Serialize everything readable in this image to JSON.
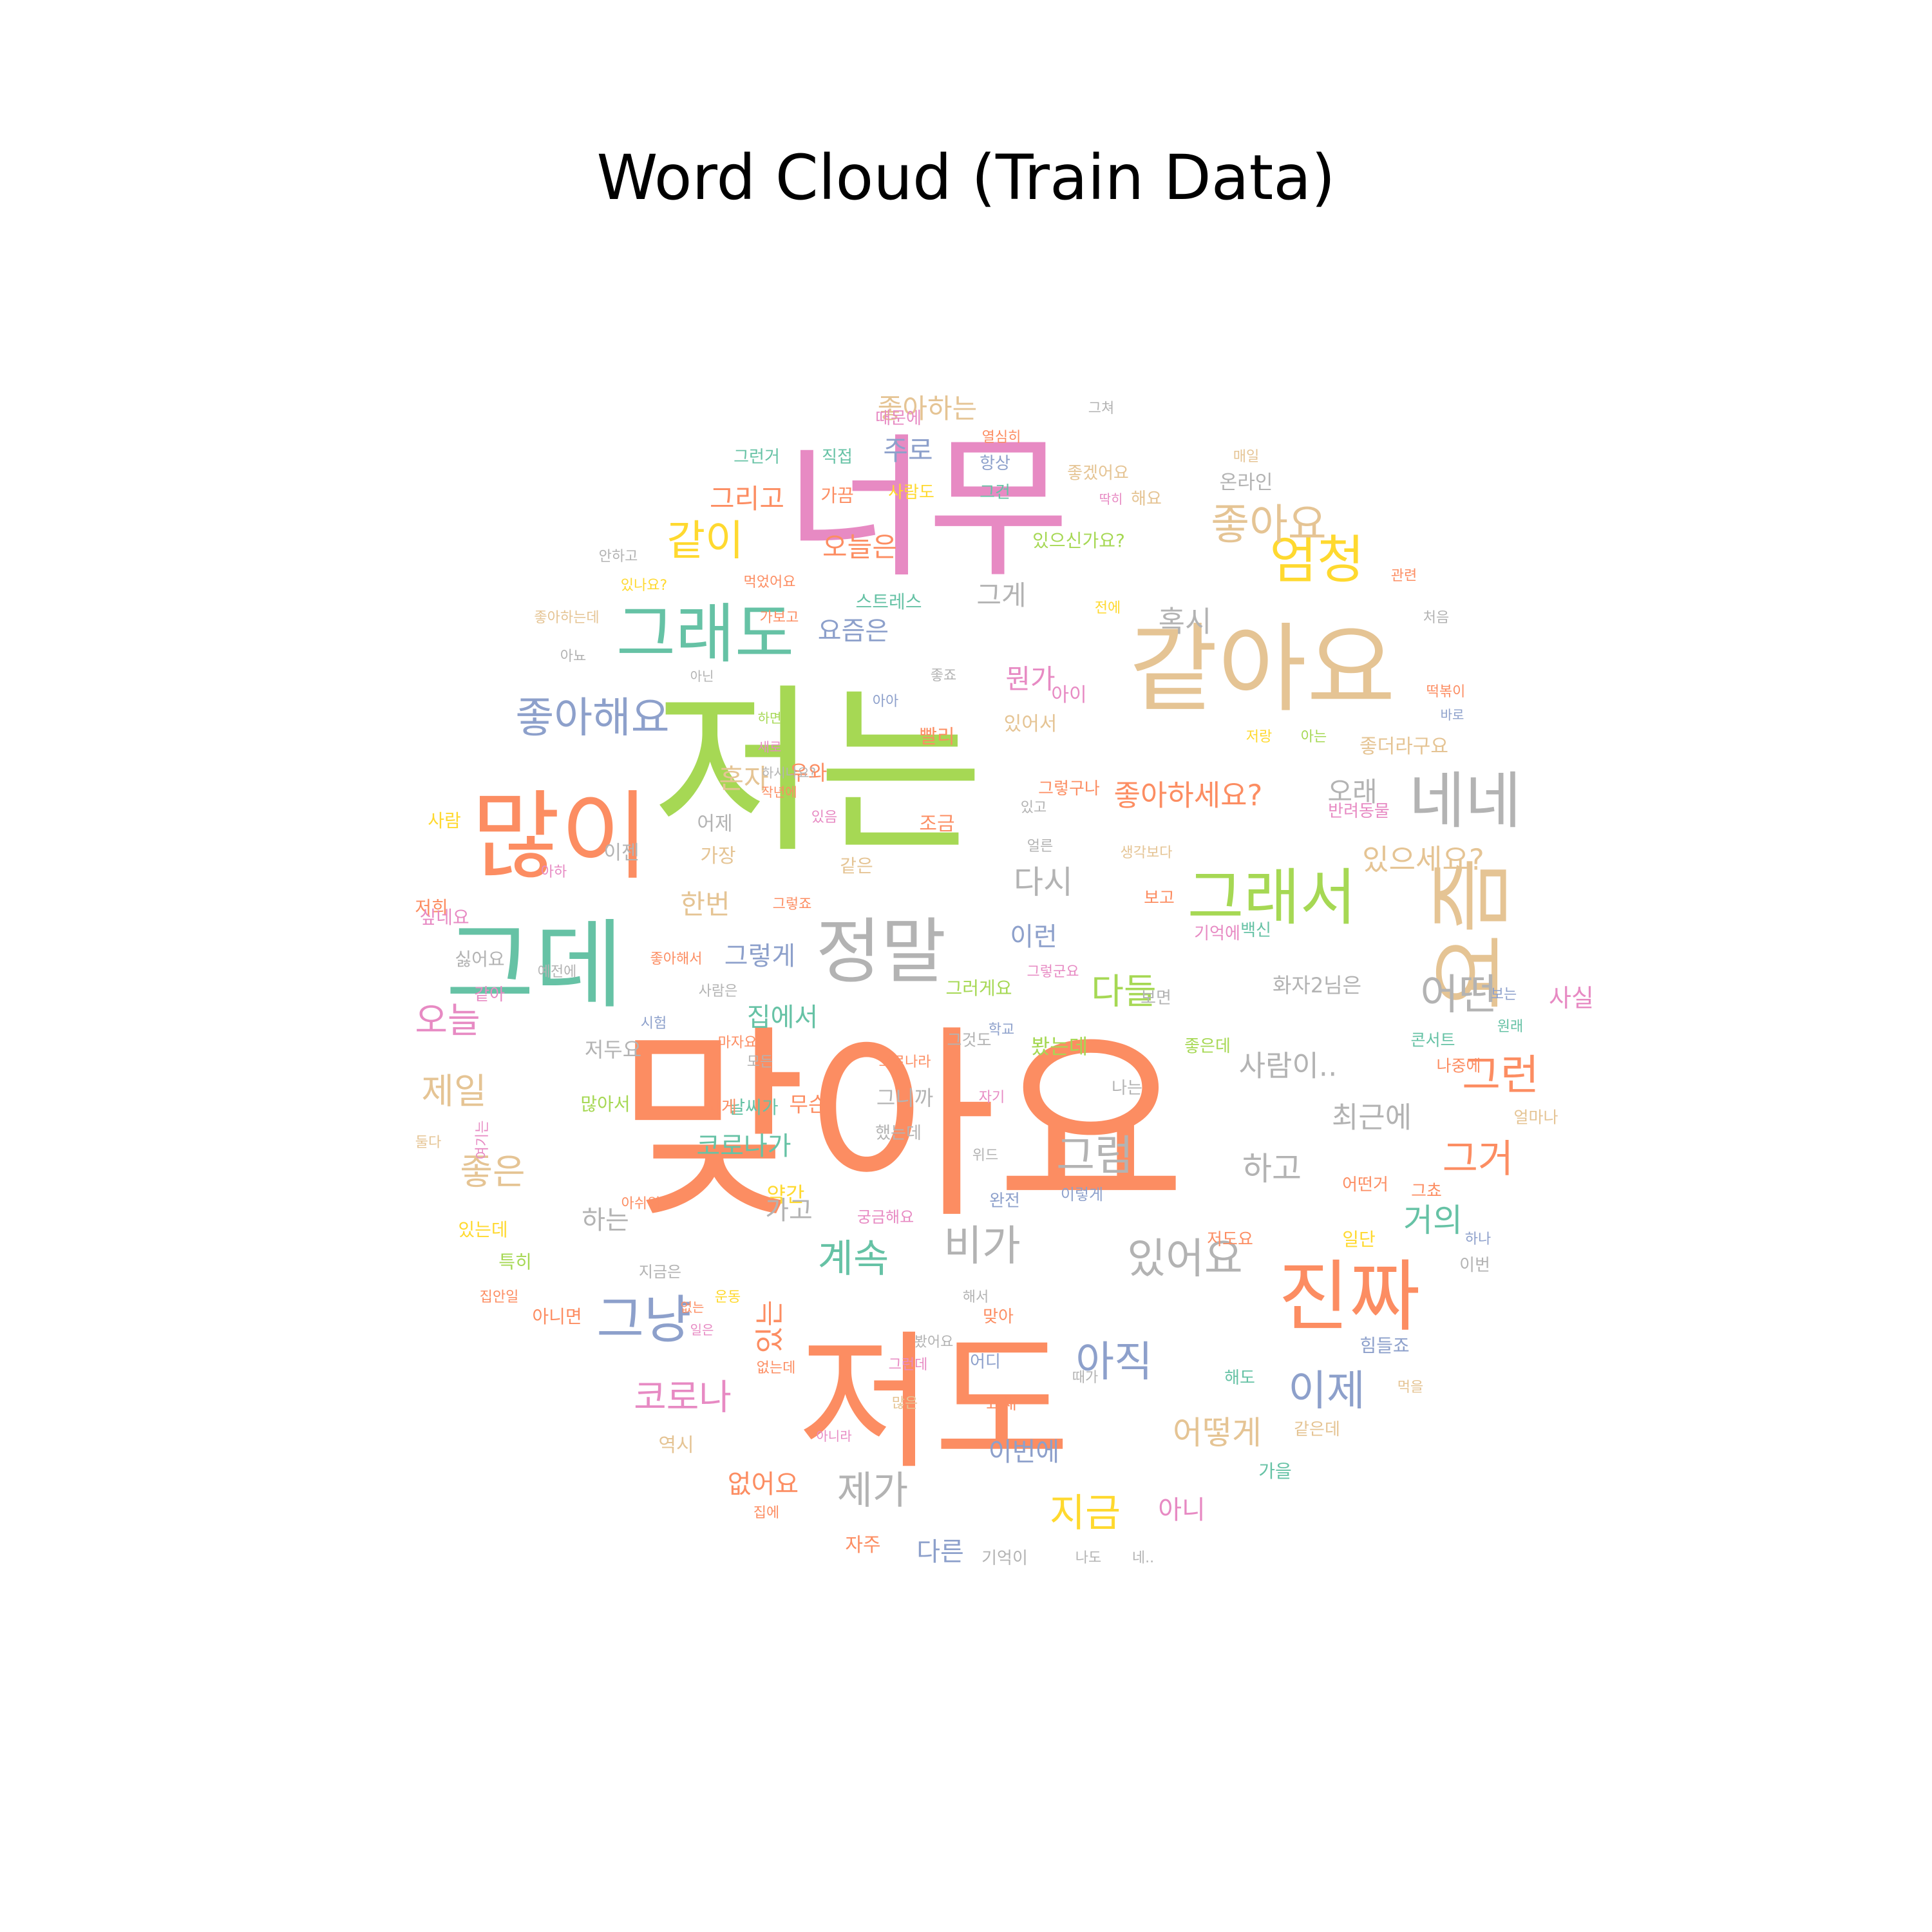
{
  "chart_data": {
    "type": "wordcloud",
    "title": "Word Cloud (Train Data)",
    "palette": [
      "#66c2a5",
      "#fc8d62",
      "#8da0cb",
      "#e78ac3",
      "#a6d854",
      "#ffd92f",
      "#e5c494",
      "#b3b3b3"
    ],
    "words": [
      {
        "text": "맞아요",
        "weight": 100,
        "color": "#fc8d62"
      },
      {
        "text": "저는",
        "weight": 90,
        "color": "#a6d854"
      },
      {
        "text": "너무",
        "weight": 72,
        "color": "#e78ac3"
      },
      {
        "text": "저도",
        "weight": 70,
        "color": "#fc8d62"
      },
      {
        "text": "같아요",
        "weight": 42,
        "color": "#e5c494"
      },
      {
        "text": "많이",
        "weight": 37,
        "color": "#fc8d62"
      },
      {
        "text": "그데",
        "weight": 34,
        "color": "#66c2a5"
      },
      {
        "text": "요즘",
        "weight": 32,
        "color": "#e5c494"
      },
      {
        "text": "진짜",
        "weight": 30,
        "color": "#fc8d62"
      },
      {
        "text": "정말",
        "weight": 28,
        "color": "#b3b3b3"
      },
      {
        "text": "그래도",
        "weight": 26,
        "color": "#66c2a5"
      },
      {
        "text": "그래서",
        "weight": 24,
        "color": "#a6d854"
      },
      {
        "text": "네네",
        "weight": 24,
        "color": "#b3b3b3"
      },
      {
        "text": "엄청",
        "weight": 21,
        "color": "#ffd92f"
      },
      {
        "text": "그냥",
        "weight": 21,
        "color": "#8da0cb"
      },
      {
        "text": "좋아해요",
        "weight": 18,
        "color": "#8da0cb"
      },
      {
        "text": "좋아요",
        "weight": 17,
        "color": "#e5c494"
      },
      {
        "text": "같이",
        "weight": 17,
        "color": "#ffd92f"
      },
      {
        "text": "어떤",
        "weight": 17,
        "color": "#b3b3b3"
      },
      {
        "text": "아직",
        "weight": 17,
        "color": "#8da0cb"
      },
      {
        "text": "있어요",
        "weight": 16,
        "color": "#b3b3b3"
      },
      {
        "text": "비가",
        "weight": 16,
        "color": "#b3b3b3"
      },
      {
        "text": "계속",
        "weight": 15,
        "color": "#66c2a5"
      },
      {
        "text": "이제",
        "weight": 15,
        "color": "#8da0cb"
      },
      {
        "text": "그럼",
        "weight": 15,
        "color": "#b3b3b3"
      },
      {
        "text": "그런",
        "weight": 15,
        "color": "#fc8d62"
      },
      {
        "text": "그거",
        "weight": 15,
        "color": "#fc8d62"
      },
      {
        "text": "지금",
        "weight": 14,
        "color": "#ffd92f"
      },
      {
        "text": "제가",
        "weight": 14,
        "color": "#b3b3b3"
      },
      {
        "text": "코로나",
        "weight": 14,
        "color": "#e78ac3"
      },
      {
        "text": "오늘",
        "weight": 14,
        "color": "#e78ac3"
      },
      {
        "text": "제일",
        "weight": 14,
        "color": "#e5c494"
      },
      {
        "text": "좋은",
        "weight": 13,
        "color": "#e5c494"
      },
      {
        "text": "다들",
        "weight": 13,
        "color": "#a6d854"
      },
      {
        "text": "어떻게",
        "weight": 12,
        "color": "#e5c494"
      },
      {
        "text": "거의",
        "weight": 12,
        "color": "#66c2a5"
      },
      {
        "text": "있는",
        "weight": 12,
        "color": "#fc8d62"
      },
      {
        "text": "좋아하세요?",
        "weight": 11,
        "color": "#fc8d62"
      },
      {
        "text": "있으세요?",
        "weight": 11,
        "color": "#e5c494"
      },
      {
        "text": "혹시",
        "weight": 11,
        "color": "#b3b3b3"
      },
      {
        "text": "다시",
        "weight": 11,
        "color": "#b3b3b3"
      },
      {
        "text": "하고",
        "weight": 11,
        "color": "#b3b3b3"
      },
      {
        "text": "최근에",
        "weight": 11,
        "color": "#b3b3b3"
      },
      {
        "text": "사람이..",
        "weight": 11,
        "color": "#b3b3b3"
      },
      {
        "text": "그리고",
        "weight": 10,
        "color": "#fc8d62"
      },
      {
        "text": "오늘은",
        "weight": 10,
        "color": "#fc8d62"
      },
      {
        "text": "주로",
        "weight": 10,
        "color": "#8da0cb"
      },
      {
        "text": "그게",
        "weight": 10,
        "color": "#b3b3b3"
      },
      {
        "text": "뭔가",
        "weight": 10,
        "color": "#e78ac3"
      },
      {
        "text": "요즘은",
        "weight": 10,
        "color": "#8da0cb"
      },
      {
        "text": "좋아하는",
        "weight": 10,
        "color": "#e5c494"
      },
      {
        "text": "오래",
        "weight": 10,
        "color": "#b3b3b3"
      },
      {
        "text": "혼자",
        "weight": 10,
        "color": "#e5c494"
      },
      {
        "text": "한번",
        "weight": 10,
        "color": "#e5c494"
      },
      {
        "text": "이런",
        "weight": 10,
        "color": "#8da0cb"
      },
      {
        "text": "그렇게",
        "weight": 10,
        "color": "#8da0cb"
      },
      {
        "text": "집에서",
        "weight": 10,
        "color": "#66c2a5"
      },
      {
        "text": "코로나가",
        "weight": 10,
        "color": "#66c2a5"
      },
      {
        "text": "하는",
        "weight": 10,
        "color": "#b3b3b3"
      },
      {
        "text": "가고",
        "weight": 10,
        "color": "#b3b3b3"
      },
      {
        "text": "없어요",
        "weight": 10,
        "color": "#fc8d62"
      },
      {
        "text": "이번에",
        "weight": 10,
        "color": "#8da0cb"
      },
      {
        "text": "아니",
        "weight": 10,
        "color": "#e78ac3"
      },
      {
        "text": "다른",
        "weight": 10,
        "color": "#8da0cb"
      },
      {
        "text": "사실",
        "weight": 10,
        "color": "#e78ac3"
      },
      {
        "text": "화자2님은",
        "weight": 9,
        "color": "#b3b3b3"
      },
      {
        "text": "봤는데",
        "weight": 8,
        "color": "#a6d854"
      },
      {
        "text": "약간",
        "weight": 8,
        "color": "#ffd92f"
      },
      {
        "text": "무슨",
        "weight": 8,
        "color": "#fc8d62"
      },
      {
        "text": "그니까",
        "weight": 8,
        "color": "#b3b3b3"
      },
      {
        "text": "저두요",
        "weight": 8,
        "color": "#b3b3b3"
      },
      {
        "text": "빨리",
        "weight": 8,
        "color": "#fc8d62"
      },
      {
        "text": "아이",
        "weight": 8,
        "color": "#e78ac3"
      },
      {
        "text": "있어서",
        "weight": 8,
        "color": "#e5c494"
      },
      {
        "text": "좋더라구요",
        "weight": 8,
        "color": "#e5c494"
      },
      {
        "text": "그러게요",
        "weight": 8,
        "color": "#a6d854"
      },
      {
        "text": "그것도",
        "weight": 7,
        "color": "#b3b3b3"
      },
      {
        "text": "그렇구나",
        "weight": 7,
        "color": "#fc8d62"
      },
      {
        "text": "같은",
        "weight": 7,
        "color": "#e5c494"
      },
      {
        "text": "우와",
        "weight": 7,
        "color": "#fc8d62"
      },
      {
        "text": "어제",
        "weight": 7,
        "color": "#b3b3b3"
      },
      {
        "text": "조금",
        "weight": 7,
        "color": "#fc8d62"
      },
      {
        "text": "스트레스",
        "weight": 7,
        "color": "#66c2a5"
      },
      {
        "text": "가끔",
        "weight": 7,
        "color": "#fc8d62"
      },
      {
        "text": "그런거",
        "weight": 7,
        "color": "#66c2a5"
      },
      {
        "text": "사람도",
        "weight": 7,
        "color": "#ffd92f"
      },
      {
        "text": "그건",
        "weight": 7,
        "color": "#66c2a5"
      },
      {
        "text": "항상",
        "weight": 7,
        "color": "#8da0cb"
      },
      {
        "text": "직접",
        "weight": 7,
        "color": "#66c2a5"
      },
      {
        "text": "때문에",
        "weight": 7,
        "color": "#e78ac3"
      },
      {
        "text": "좋겠어요",
        "weight": 7,
        "color": "#e5c494"
      },
      {
        "text": "해요",
        "weight": 7,
        "color": "#e5c494"
      },
      {
        "text": "온라인",
        "weight": 7,
        "color": "#b3b3b3"
      },
      {
        "text": "있으신가요?",
        "weight": 7,
        "color": "#a6d854"
      },
      {
        "text": "이젠",
        "weight": 7,
        "color": "#b3b3b3"
      },
      {
        "text": "가장",
        "weight": 7,
        "color": "#e5c494"
      },
      {
        "text": "날씨가",
        "weight": 7,
        "color": "#66c2a5"
      },
      {
        "text": "많아서",
        "weight": 6,
        "color": "#a6d854"
      },
      {
        "text": "되게",
        "weight": 6,
        "color": "#fc8d62"
      },
      {
        "text": "했는데",
        "weight": 6,
        "color": "#b3b3b3"
      },
      {
        "text": "콘서트",
        "weight": 6,
        "color": "#66c2a5"
      },
      {
        "text": "나중에",
        "weight": 6,
        "color": "#fc8d62"
      },
      {
        "text": "좋은데",
        "weight": 6,
        "color": "#a6d854"
      },
      {
        "text": "나는",
        "weight": 6,
        "color": "#b3b3b3"
      },
      {
        "text": "보면",
        "weight": 6,
        "color": "#b3b3b3"
      },
      {
        "text": "기억에",
        "weight": 6,
        "color": "#e78ac3"
      },
      {
        "text": "보고",
        "weight": 6,
        "color": "#fc8d62"
      },
      {
        "text": "백신",
        "weight": 6,
        "color": "#66c2a5"
      },
      {
        "text": "얼마나",
        "weight": 6,
        "color": "#e5c494"
      },
      {
        "text": "저희",
        "weight": 6,
        "color": "#fc8d62"
      },
      {
        "text": "사람",
        "weight": 6,
        "color": "#ffd92f"
      },
      {
        "text": "싶네요",
        "weight": 6,
        "color": "#e78ac3"
      },
      {
        "text": "싫어요",
        "weight": 6,
        "color": "#b3b3b3"
      },
      {
        "text": "같아",
        "weight": 6,
        "color": "#e78ac3"
      },
      {
        "text": "특히",
        "weight": 6,
        "color": "#a6d854"
      },
      {
        "text": "있는데",
        "weight": 6,
        "color": "#ffd92f"
      },
      {
        "text": "아니면",
        "weight": 6,
        "color": "#fc8d62"
      },
      {
        "text": "역시",
        "weight": 6,
        "color": "#e5c494"
      },
      {
        "text": "자주",
        "weight": 6,
        "color": "#fc8d62"
      },
      {
        "text": "가을",
        "weight": 6,
        "color": "#66c2a5"
      },
      {
        "text": "같은데",
        "weight": 6,
        "color": "#e5c494"
      },
      {
        "text": "일단",
        "weight": 6,
        "color": "#ffd92f"
      },
      {
        "text": "저도요",
        "weight": 6,
        "color": "#fc8d62"
      },
      {
        "text": "이번",
        "weight": 6,
        "color": "#b3b3b3"
      },
      {
        "text": "어떤거",
        "weight": 6,
        "color": "#fc8d62"
      },
      {
        "text": "그쵸",
        "weight": 6,
        "color": "#fc8d62"
      },
      {
        "text": "힘들죠",
        "weight": 6,
        "color": "#8da0cb"
      },
      {
        "text": "해도",
        "weight": 6,
        "color": "#66c2a5"
      },
      {
        "text": "어디",
        "weight": 6,
        "color": "#8da0cb"
      },
      {
        "text": "요새",
        "weight": 6,
        "color": "#fc8d62"
      },
      {
        "text": "맞아",
        "weight": 6,
        "color": "#fc8d62"
      },
      {
        "text": "해서",
        "weight": 5,
        "color": "#b3b3b3"
      },
      {
        "text": "완전",
        "weight": 6,
        "color": "#8da0cb"
      },
      {
        "text": "위드",
        "weight": 5,
        "color": "#b3b3b3"
      },
      {
        "text": "이렇게",
        "weight": 5,
        "color": "#8da0cb"
      },
      {
        "text": "궁금해요",
        "weight": 5,
        "color": "#e78ac3"
      },
      {
        "text": "지금은",
        "weight": 5,
        "color": "#b3b3b3"
      },
      {
        "text": "운동",
        "weight": 5,
        "color": "#ffd92f"
      },
      {
        "text": "없는",
        "weight": 5,
        "color": "#fc8d62"
      },
      {
        "text": "일은",
        "weight": 5,
        "color": "#e78ac3"
      },
      {
        "text": "봤어요",
        "weight": 5,
        "color": "#b3b3b3"
      },
      {
        "text": "그런데",
        "weight": 5,
        "color": "#e78ac3"
      },
      {
        "text": "없는데",
        "weight": 5,
        "color": "#fc8d62"
      },
      {
        "text": "때가",
        "weight": 5,
        "color": "#b3b3b3"
      },
      {
        "text": "많은",
        "weight": 5,
        "color": "#e5c494"
      },
      {
        "text": "아니라",
        "weight": 5,
        "color": "#e78ac3"
      },
      {
        "text": "집에",
        "weight": 5,
        "color": "#fc8d62"
      },
      {
        "text": "기억이",
        "weight": 5,
        "color": "#b3b3b3"
      },
      {
        "text": "나도",
        "weight": 5,
        "color": "#b3b3b3"
      },
      {
        "text": "네..",
        "weight": 5,
        "color": "#b3b3b3"
      },
      {
        "text": "먹을",
        "weight": 5,
        "color": "#e5c494"
      },
      {
        "text": "하나",
        "weight": 5,
        "color": "#8da0cb"
      },
      {
        "text": "그쳐",
        "weight": 5,
        "color": "#b3b3b3"
      },
      {
        "text": "열심히",
        "weight": 5,
        "color": "#fc8d62"
      },
      {
        "text": "매일",
        "weight": 5,
        "color": "#e5c494"
      },
      {
        "text": "딱히",
        "weight": 5,
        "color": "#e78ac3"
      },
      {
        "text": "관련",
        "weight": 5,
        "color": "#fc8d62"
      },
      {
        "text": "처음",
        "weight": 5,
        "color": "#b3b3b3"
      },
      {
        "text": "전에",
        "weight": 5,
        "color": "#ffd92f"
      },
      {
        "text": "떡볶이",
        "weight": 5,
        "color": "#fc8d62"
      },
      {
        "text": "바로",
        "weight": 5,
        "color": "#8da0cb"
      },
      {
        "text": "아는",
        "weight": 5,
        "color": "#a6d854"
      },
      {
        "text": "저랑",
        "weight": 5,
        "color": "#ffd92f"
      },
      {
        "text": "있고",
        "weight": 5,
        "color": "#b3b3b3"
      },
      {
        "text": "반려동물",
        "weight": 5,
        "color": "#e78ac3"
      },
      {
        "text": "얼른",
        "weight": 5,
        "color": "#b3b3b3"
      },
      {
        "text": "생각보다",
        "weight": 5,
        "color": "#e5c494"
      },
      {
        "text": "그렇군요",
        "weight": 5,
        "color": "#e78ac3"
      },
      {
        "text": "좋죠",
        "weight": 5,
        "color": "#b3b3b3"
      },
      {
        "text": "아아",
        "weight": 5,
        "color": "#8da0cb"
      },
      {
        "text": "아닌",
        "weight": 5,
        "color": "#b3b3b3"
      },
      {
        "text": "가보고",
        "weight": 5,
        "color": "#fc8d62"
      },
      {
        "text": "먹었어요",
        "weight": 5,
        "color": "#fc8d62"
      },
      {
        "text": "있나요?",
        "weight": 5,
        "color": "#ffd92f"
      },
      {
        "text": "안하고",
        "weight": 5,
        "color": "#b3b3b3"
      },
      {
        "text": "좋아하는데",
        "weight": 5,
        "color": "#e5c494"
      },
      {
        "text": "아뇨",
        "weight": 5,
        "color": "#b3b3b3"
      },
      {
        "text": "하면",
        "weight": 5,
        "color": "#a6d854"
      },
      {
        "text": "새로",
        "weight": 5,
        "color": "#e78ac3"
      },
      {
        "text": "하시나요?",
        "weight": 5,
        "color": "#b3b3b3"
      },
      {
        "text": "작년에",
        "weight": 5,
        "color": "#fc8d62"
      },
      {
        "text": "있음",
        "weight": 5,
        "color": "#e78ac3"
      },
      {
        "text": "아하",
        "weight": 5,
        "color": "#e78ac3"
      },
      {
        "text": "그렇죠",
        "weight": 5,
        "color": "#fc8d62"
      },
      {
        "text": "좋아해서",
        "weight": 5,
        "color": "#fc8d62"
      },
      {
        "text": "예전에",
        "weight": 5,
        "color": "#b3b3b3"
      },
      {
        "text": "사람은",
        "weight": 5,
        "color": "#b3b3b3"
      },
      {
        "text": "시험",
        "weight": 5,
        "color": "#8da0cb"
      },
      {
        "text": "마자요",
        "weight": 5,
        "color": "#fc8d62"
      },
      {
        "text": "모든",
        "weight": 5,
        "color": "#b3b3b3"
      },
      {
        "text": "코로나라",
        "weight": 5,
        "color": "#fc8d62"
      },
      {
        "text": "학교",
        "weight": 5,
        "color": "#8da0cb"
      },
      {
        "text": "자기",
        "weight": 5,
        "color": "#e78ac3"
      },
      {
        "text": "보는",
        "weight": 5,
        "color": "#8da0cb"
      },
      {
        "text": "원래",
        "weight": 5,
        "color": "#66c2a5"
      },
      {
        "text": "둘다",
        "weight": 5,
        "color": "#e5c494"
      },
      {
        "text": "여기는",
        "weight": 5,
        "color": "#e78ac3"
      },
      {
        "text": "아쉬워요",
        "weight": 5,
        "color": "#fc8d62"
      },
      {
        "text": "집안일",
        "weight": 5,
        "color": "#fc8d62"
      }
    ]
  }
}
